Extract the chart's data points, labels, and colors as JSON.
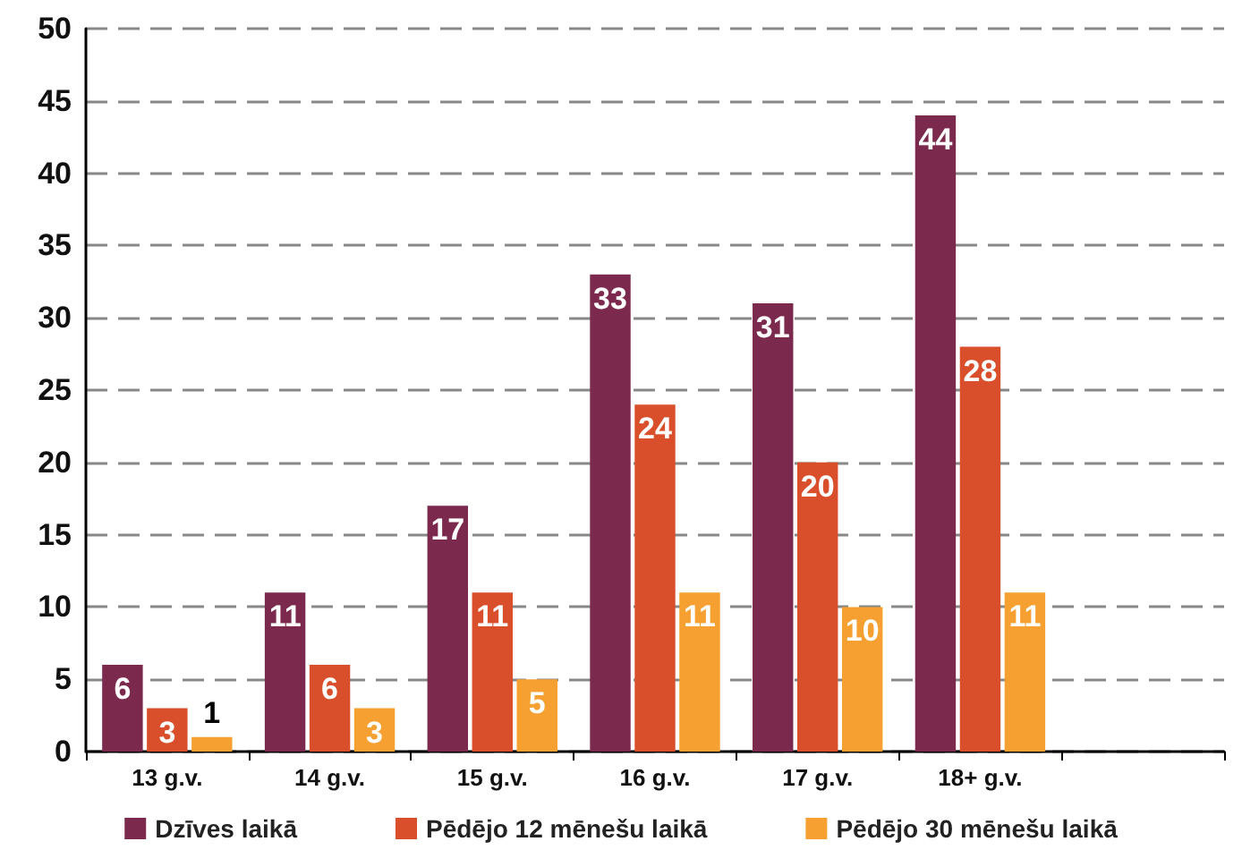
{
  "chart_data": {
    "type": "bar",
    "categories": [
      "13 g.v.",
      "14 g.v.",
      "15 g.v.",
      "16 g.v.",
      "17 g.v.",
      "18+ g.v.",
      null
    ],
    "series": [
      {
        "name": "Dzīves laikā",
        "color": "#7b2a4e",
        "values": [
          6,
          11,
          17,
          33,
          31,
          44,
          null
        ]
      },
      {
        "name": "Pēdējo 12 mēnešu laikā",
        "color": "#d94f2b",
        "values": [
          3,
          6,
          11,
          24,
          20,
          28,
          null
        ]
      },
      {
        "name": "Pēdējo 30 mēnešu laikā",
        "color": "#f5a030",
        "values": [
          1,
          3,
          5,
          11,
          10,
          11,
          null
        ]
      }
    ],
    "data_labels": true,
    "ylim": [
      0,
      50
    ],
    "yticks": [
      0,
      5,
      10,
      15,
      20,
      25,
      30,
      35,
      40,
      45,
      50
    ],
    "grid": "y",
    "legend": "bottom"
  }
}
